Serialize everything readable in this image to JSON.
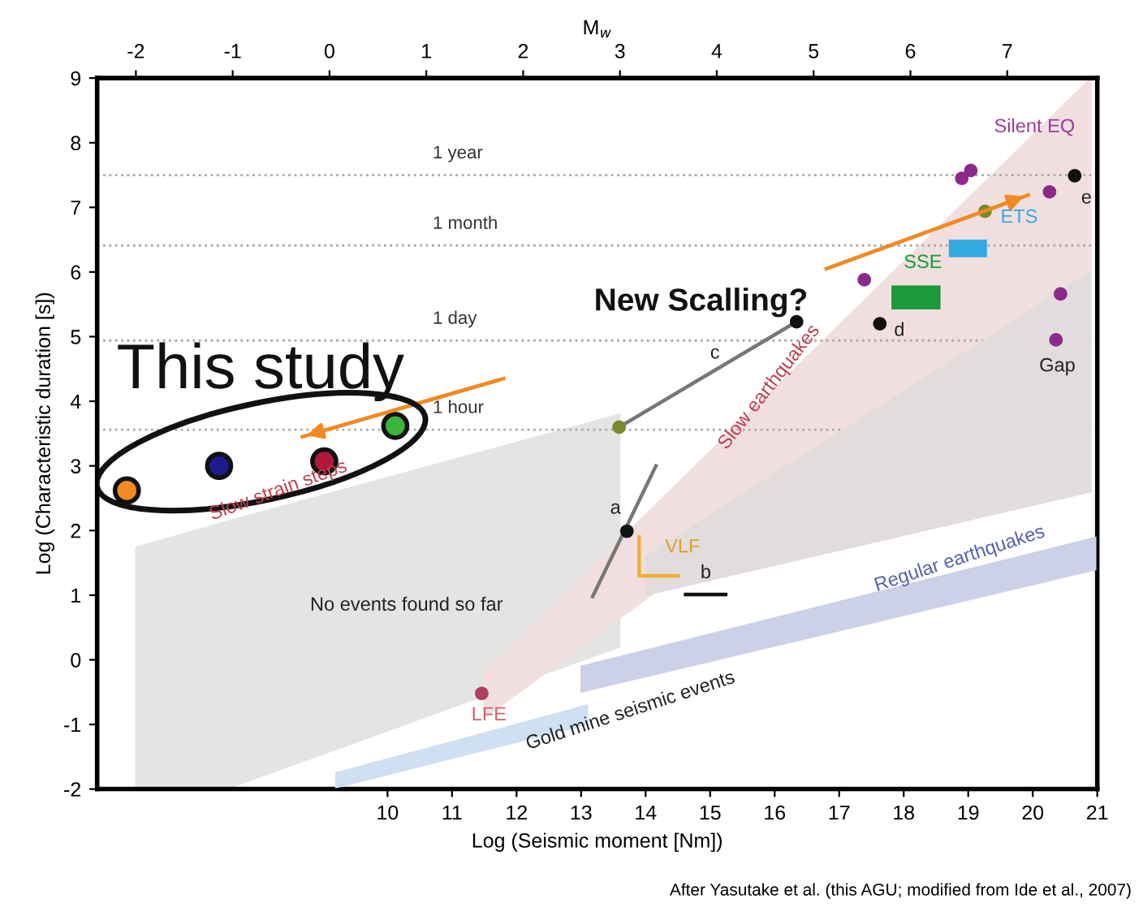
{
  "chart_data": {
    "type": "scatter",
    "xlabel": "Log (Seismic moment [Nm])",
    "ylabel": "Log (Characteristic duration [s])",
    "x2label": "M$_{w}$",
    "xlim": [
      5.5,
      21
    ],
    "xticks": [
      10,
      11,
      12,
      13,
      14,
      15,
      16,
      17,
      18,
      19,
      20,
      21
    ],
    "ylim": [
      -2,
      9
    ],
    "yticks": [
      -2,
      -1,
      0,
      1,
      2,
      3,
      4,
      5,
      6,
      7,
      8,
      9
    ],
    "x2lim": [
      -2.4,
      7.93
    ],
    "x2ticks": [
      -2,
      -1,
      0,
      1,
      2,
      3,
      4,
      5,
      6,
      7
    ],
    "grid": false,
    "legend": false,
    "series": [
      {
        "type": "area",
        "color": "#e4e4e4",
        "x": [
          6.1,
          7.5,
          13.6,
          13.6,
          7.5,
          6.1
        ],
        "values": [
          1.74,
          2.14,
          3.8,
          0.2,
          -2,
          -2
        ]
      },
      {
        "type": "area",
        "color": "#f1dfdf",
        "x": [
          11.5,
          20.9,
          20.9,
          11.5
        ],
        "values": [
          -0.2,
          9.0,
          6.0,
          -0.9
        ]
      },
      {
        "type": "area",
        "color": "#e2dcdc",
        "x": [
          14.0,
          20.9,
          20.9,
          14.0
        ],
        "values": [
          1.6,
          6.0,
          2.6,
          1.0
        ]
      },
      {
        "type": "area",
        "color": "#cdd1e8",
        "x": [
          13.0,
          21.0,
          21.0,
          13.0
        ],
        "values": [
          -0.1,
          1.9,
          1.4,
          -0.5
        ]
      },
      {
        "type": "area",
        "color": "#cfe0f2",
        "x": [
          9.2,
          13.1,
          13.1,
          9.2
        ],
        "values": [
          -1.75,
          -0.7,
          -1.0,
          -1.98
        ]
      },
      {
        "type": "area",
        "color": "#1a9a3a",
        "x": [
          17.82,
          18.56,
          18.56,
          17.82
        ],
        "values": [
          5.78,
          5.78,
          5.43,
          5.43
        ]
      },
      {
        "type": "area",
        "color": "#33aadd",
        "x": [
          18.71,
          19.28,
          19.28,
          18.71
        ],
        "values": [
          6.49,
          6.49,
          6.24,
          6.24
        ]
      },
      {
        "type": "line",
        "color": "#777777",
        "x": [
          13.59,
          16.34
        ],
        "values": [
          3.6,
          5.23
        ],
        "marker": "none"
      },
      {
        "type": "line",
        "color": "#777777",
        "x": [
          13.18,
          14.16
        ],
        "values": [
          0.98,
          3.0
        ],
        "marker": "none"
      },
      {
        "type": "line",
        "color": "#111111",
        "x": [
          14.62,
          15.24
        ],
        "values": [
          1.01,
          1.01
        ],
        "marker": "none"
      },
      {
        "type": "line",
        "color": "#f0b030",
        "x": [
          13.9,
          13.9,
          14.5
        ],
        "values": [
          1.9,
          1.3,
          1.3
        ],
        "marker": "none"
      },
      {
        "type": "line",
        "color": "#f08a24",
        "x": [
          11.8,
          8.68
        ],
        "values": [
          4.35,
          3.45
        ],
        "marker": "none"
      },
      {
        "type": "line",
        "color": "#f08a24",
        "x": [
          16.8,
          19.93
        ],
        "values": [
          6.05,
          7.19
        ],
        "marker": "none"
      },
      {
        "marker": "circle",
        "colors": [
          "#f08a24",
          "#1c1c8c",
          "#b0183c",
          "#3cb43c"
        ],
        "x": [
          5.96,
          7.39,
          9.02,
          10.12
        ],
        "values": [
          2.62,
          3.0,
          3.07,
          3.62
        ]
      },
      {
        "marker": "circle",
        "color": "#8b2a8b",
        "x": [
          18.9,
          19.04,
          20.26,
          20.43,
          20.36,
          17.39
        ],
        "values": [
          7.45,
          7.57,
          7.24,
          5.66,
          4.95,
          5.88
        ]
      },
      {
        "marker": "circle",
        "color": "#b04060",
        "x": [
          11.46
        ],
        "values": [
          -0.52
        ]
      },
      {
        "marker": "circle",
        "color": "#111111",
        "x": [
          16.34,
          17.63,
          20.65,
          13.71
        ],
        "values": [
          5.23,
          5.2,
          7.49,
          1.99
        ]
      },
      {
        "marker": "circle",
        "color": "#7a8a2a",
        "x": [
          13.59,
          19.26
        ],
        "values": [
          3.6,
          6.94
        ]
      }
    ],
    "ref_lines": [
      {
        "axis": "y",
        "value": 7.5,
        "label": "1 year",
        "color": "#aaaaaa",
        "line_style": "dotted"
      },
      {
        "axis": "y",
        "value": 6.41,
        "label": "1 month",
        "color": "#aaaaaa",
        "line_style": "dotted"
      },
      {
        "axis": "y",
        "value": 4.94,
        "label": "1 day",
        "color": "#aaaaaa",
        "line_style": "dotted"
      },
      {
        "axis": "y",
        "value": 3.56,
        "label": "1 hour",
        "color": "#aaaaaa",
        "line_style": "dotted"
      }
    ],
    "annotations": [
      "This study",
      {
        "text": "New Scalling?",
        "x": 19.93,
        "y": 7.19
      },
      "Silent EQ",
      "ETS",
      "SSE",
      "a",
      "b",
      "c",
      "d",
      "e",
      "VLF",
      "LFE",
      "Gap",
      "No events found so far",
      "Slow earthquakes",
      "Slow strain steps",
      "Regular earthquakes",
      "Gold mine seismic events",
      "After Yasutake et al. (this AGU; modified from Ide et al., 2007)"
    ]
  }
}
